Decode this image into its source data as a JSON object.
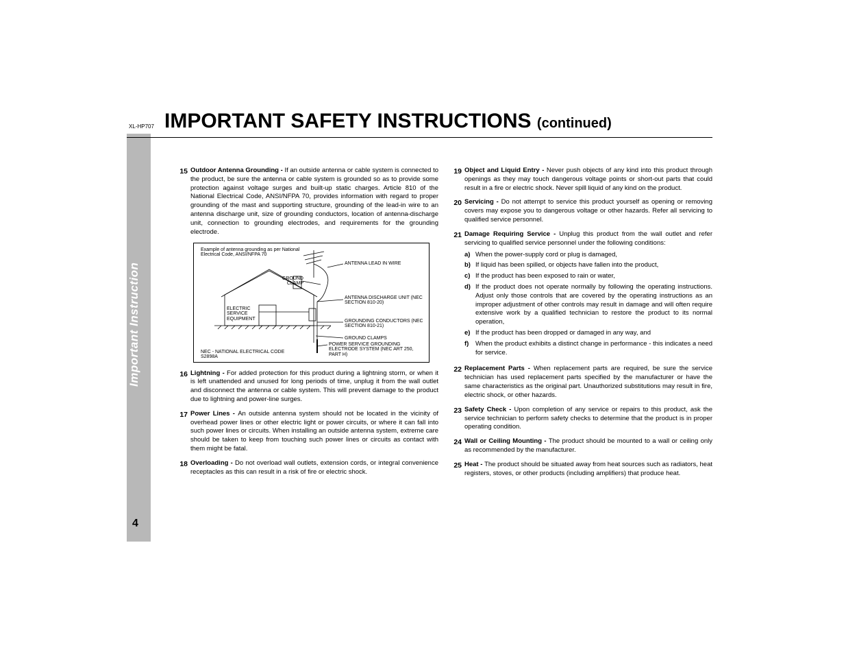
{
  "model": "XL-HP707",
  "title_main": "IMPORTANT SAFETY INSTRUCTIONS",
  "title_cont": "(continued)",
  "side_label": "Important Instruction",
  "page_number": "4",
  "diagram": {
    "caption": "Example of antenna grounding as per National Electrical Code, ANSI/NFPA 70",
    "lbl_lead": "ANTENNA LEAD IN WIRE",
    "lbl_gclamp": "GROUND CLAMP",
    "lbl_discharge": "ANTENNA DISCHARGE UNIT (NEC SECTION 810-20)",
    "lbl_equip": "ELECTRIC SERVICE EQUIPMENT",
    "lbl_gcond": "GROUNDING CONDUCTORS (NEC SECTION 810-21)",
    "lbl_gclamps2": "GROUND CLAMPS",
    "lbl_power": "POWER SERVICE GROUNDING ELECTRODE SYSTEM (NEC ART 250, PART H)",
    "lbl_nec": "NEC - NATIONAL ELECTRICAL CODE S2898A"
  },
  "left": [
    {
      "n": "15",
      "lead": "Outdoor Antenna Grounding - ",
      "text": "If an outside antenna or cable system is connected to the product, be sure the antenna or cable system is grounded so as to provide some protection against voltage surges and built-up static charges. Article 810 of the National Electrical Code, ANSI/NFPA 70, provides information with regard to proper grounding of the mast and supporting structure, grounding of the lead-in wire to an antenna discharge unit, size of grounding conductors, location of antenna-discharge unit, connection to grounding electrodes, and requirements for the grounding electrode."
    },
    {
      "n": "16",
      "lead": "Lightning - ",
      "text": "For added protection for this product during a lightning storm, or when it is left unattended and unused for long periods of time, unplug it from the wall outlet and disconnect the antenna or cable system. This will prevent damage to the product due to lightning and power-line surges."
    },
    {
      "n": "17",
      "lead": "Power Lines - ",
      "text": "An outside antenna system should not be located in the vicinity of overhead power lines or other electric light or power circuits, or where it can fall into such power lines or circuits. When installing an outside antenna system, extreme care should be taken to keep from touching such power lines or circuits as contact with them might be fatal."
    },
    {
      "n": "18",
      "lead": "Overloading - ",
      "text": "Do not overload wall outlets, extension cords, or integral convenience receptacles as this can result in a risk of fire or electric shock."
    }
  ],
  "right": [
    {
      "n": "19",
      "lead": "Object and Liquid Entry - ",
      "text": "Never push objects of any kind into this product through openings as they may touch dangerous voltage points or short-out parts that could result in a fire or electric shock. Never spill liquid of any kind on the product."
    },
    {
      "n": "20",
      "lead": "Servicing - ",
      "text": "Do not attempt to service this product yourself as opening or removing covers may expose you to dangerous voltage or other hazards. Refer all servicing to qualified service personnel."
    },
    {
      "n": "21",
      "lead": "Damage Requiring Service - ",
      "text": "Unplug this product from the wall outlet and refer servicing to qualified service personnel under the following conditions:",
      "subs": [
        {
          "l": "a)",
          "t": "When the power-supply cord or plug is damaged,"
        },
        {
          "l": "b)",
          "t": "If liquid has been spilled, or objects have fallen into the product,"
        },
        {
          "l": "c)",
          "t": "If the product has been exposed to rain or water,"
        },
        {
          "l": "d)",
          "t": "If the product does not operate normally by following the operating instructions. Adjust only those controls that are covered by the operating instructions as an improper adjustment of other controls may result in damage and will often require extensive work by a qualified technician to restore the product to its normal operation,"
        },
        {
          "l": "e)",
          "t": "If the product has been dropped or damaged in any way, and"
        },
        {
          "l": "f)",
          "t": "When the product exhibits a distinct change in performance - this indicates a need for service."
        }
      ]
    },
    {
      "n": "22",
      "lead": "Replacement Parts - ",
      "text": "When replacement parts are required, be sure the service technician has used replacement parts specified by the manufacturer or have the same characteristics as the original part. Unauthorized substitutions may result in fire, electric shock, or other hazards."
    },
    {
      "n": "23",
      "lead": "Safety Check - ",
      "text": "Upon completion of any service or repairs to this product, ask the service technician to perform safety checks to determine that the product is in proper operating condition."
    },
    {
      "n": "24",
      "lead": "Wall or Ceiling Mounting - ",
      "text": "The product should be mounted to a wall or ceiling only as recommended by the manufacturer."
    },
    {
      "n": "25",
      "lead": "Heat - ",
      "text": "The product should be situated away from heat sources such as radiators, heat registers, stoves, or other products (including amplifiers) that produce heat."
    }
  ]
}
